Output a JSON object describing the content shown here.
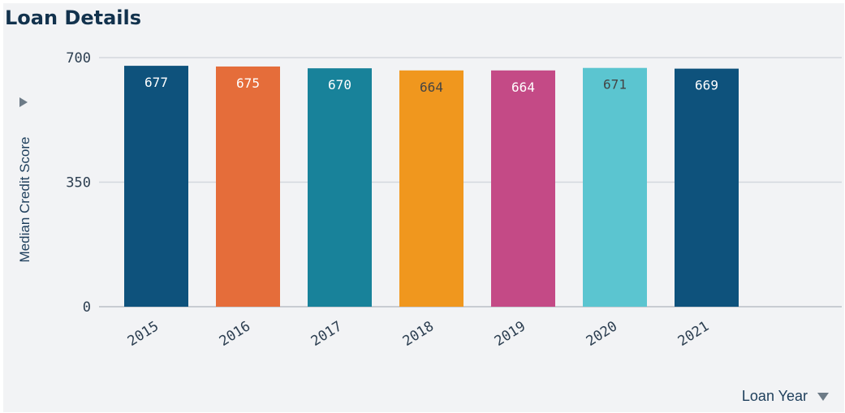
{
  "title": "Loan Details",
  "chart_data": {
    "type": "bar",
    "categories": [
      "2015",
      "2016",
      "2017",
      "2018",
      "2019",
      "2020",
      "2021"
    ],
    "values": [
      677,
      675,
      670,
      664,
      664,
      671,
      669
    ],
    "colors": [
      "#0e527c",
      "#e56d3a",
      "#18829a",
      "#f0971e",
      "#c44a86",
      "#5bc5d0",
      "#0e527c"
    ],
    "label_colors": [
      "#ffffff",
      "#ffffff",
      "#ffffff",
      "#444444",
      "#ffffff",
      "#444444",
      "#ffffff"
    ],
    "ylabel": "Median Credit Score",
    "xlabel": "Loan Year",
    "ylim": [
      0,
      700
    ],
    "yticks": [
      0,
      350,
      700
    ],
    "grid": true
  }
}
